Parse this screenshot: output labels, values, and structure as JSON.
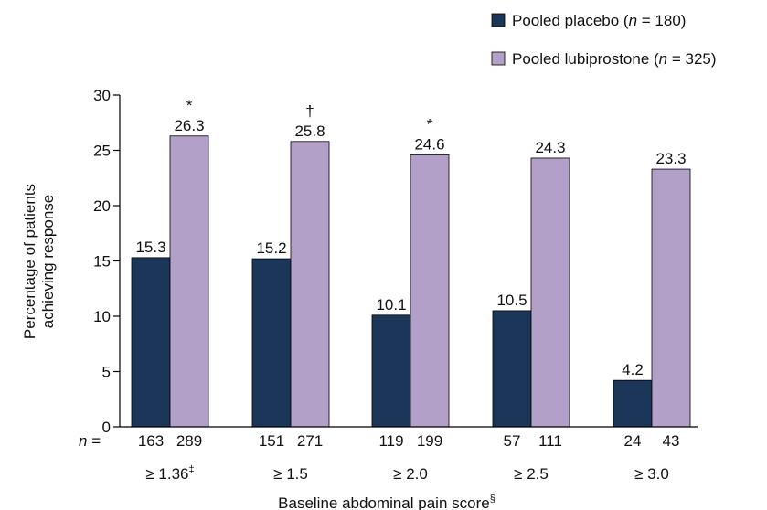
{
  "chart_data": {
    "type": "bar",
    "title": "",
    "xlabel": "Baseline abdominal pain score",
    "xlabel_superscript": "§",
    "ylabel_lines": [
      "Percentage of patients",
      "achieving response"
    ],
    "ylim": [
      0,
      30
    ],
    "yticks": [
      "0",
      "5",
      "10",
      "15",
      "20",
      "25",
      "30"
    ],
    "grid": false,
    "legend_position": "top-right",
    "categories": [
      {
        "label": "≥ 1.36",
        "sup": "‡"
      },
      {
        "label": "≥ 1.5",
        "sup": ""
      },
      {
        "label": "≥ 2.0",
        "sup": ""
      },
      {
        "label": "≥ 2.5",
        "sup": ""
      },
      {
        "label": "≥ 3.0",
        "sup": ""
      }
    ],
    "n_prefix": "n =",
    "series": [
      {
        "name_parts": [
          "Pooled placebo (",
          "n",
          " = 180)"
        ],
        "color": "#1c3659",
        "values": [
          15.3,
          15.2,
          10.1,
          10.5,
          4.2
        ],
        "value_labels": [
          "15.3",
          "15.2",
          "10.1",
          "10.5",
          "4.2"
        ],
        "n": [
          "163",
          "151",
          "119",
          "57",
          "24"
        ]
      },
      {
        "name_parts": [
          "Pooled lubiprostone (",
          "n",
          " = 325)"
        ],
        "color": "#b2a0c9",
        "values": [
          26.3,
          25.8,
          24.6,
          24.3,
          23.3
        ],
        "value_labels": [
          "26.3",
          "25.8",
          "24.6",
          "24.3",
          "23.3"
        ],
        "n": [
          "289",
          "271",
          "199",
          "111",
          "43"
        ]
      }
    ],
    "annotations": [
      "*",
      "†",
      "*",
      "",
      ""
    ]
  }
}
